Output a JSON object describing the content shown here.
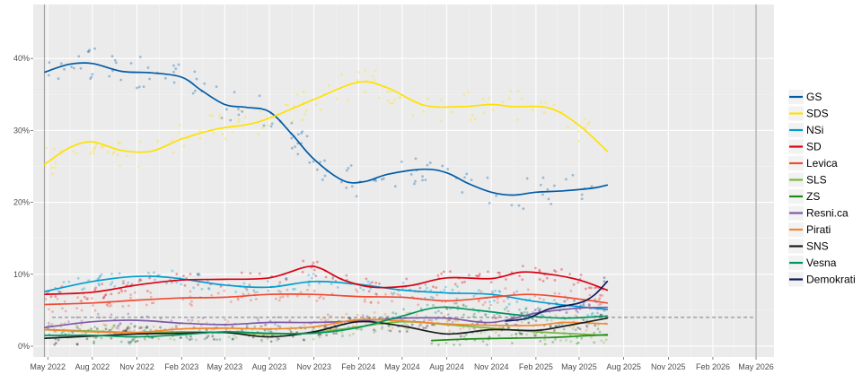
{
  "chart_data": {
    "type": "line",
    "title": "",
    "xlabel": "",
    "ylabel": "",
    "ylim": [
      -1.5,
      47.5
    ],
    "x_range": [
      "2022-04-01",
      "2026-06-07"
    ],
    "x_ticks": [
      {
        "date": "2022-05-01",
        "label": "May 2022"
      },
      {
        "date": "2022-08-01",
        "label": "Aug 2022"
      },
      {
        "date": "2022-11-01",
        "label": "Nov 2022"
      },
      {
        "date": "2023-02-01",
        "label": "Feb 2023"
      },
      {
        "date": "2023-05-01",
        "label": "May 2023"
      },
      {
        "date": "2023-08-01",
        "label": "Aug 2023"
      },
      {
        "date": "2023-11-01",
        "label": "Nov 2023"
      },
      {
        "date": "2024-02-01",
        "label": "Feb 2024"
      },
      {
        "date": "2024-05-01",
        "label": "May 2024"
      },
      {
        "date": "2024-08-01",
        "label": "Aug 2024"
      },
      {
        "date": "2024-11-01",
        "label": "Nov 2024"
      },
      {
        "date": "2025-02-01",
        "label": "Feb 2025"
      },
      {
        "date": "2025-05-01",
        "label": "May 2025"
      },
      {
        "date": "2025-08-01",
        "label": "Aug 2025"
      },
      {
        "date": "2025-11-01",
        "label": "Nov 2025"
      },
      {
        "date": "2026-02-01",
        "label": "Feb 2026"
      },
      {
        "date": "2026-05-01",
        "label": "May 2026"
      }
    ],
    "y_ticks": [
      {
        "value": 0,
        "label": "0%"
      },
      {
        "value": 10,
        "label": "10%"
      },
      {
        "value": 20,
        "label": "20%"
      },
      {
        "value": 30,
        "label": "30%"
      },
      {
        "value": 40,
        "label": "40%"
      }
    ],
    "threshold": 4,
    "reference_lines": [
      "2022-04-24",
      "2026-05-01"
    ],
    "grid": true,
    "legend_position": "right",
    "series": [
      {
        "name": "GS",
        "color": "#005ba6",
        "points": [
          [
            "2022-04-25",
            38.1
          ],
          [
            "2022-06-15",
            39.2
          ],
          [
            "2022-08-01",
            39.3
          ],
          [
            "2022-10-01",
            38.2
          ],
          [
            "2022-12-01",
            38.0
          ],
          [
            "2023-02-01",
            37.4
          ],
          [
            "2023-03-15",
            35.5
          ],
          [
            "2023-05-01",
            33.6
          ],
          [
            "2023-06-15",
            33.2
          ],
          [
            "2023-08-01",
            32.6
          ],
          [
            "2023-09-15",
            29.6
          ],
          [
            "2023-11-01",
            26.0
          ],
          [
            "2024-01-01",
            23.0
          ],
          [
            "2024-02-15",
            22.9
          ],
          [
            "2024-04-01",
            23.9
          ],
          [
            "2024-06-15",
            24.6
          ],
          [
            "2024-08-01",
            24.1
          ],
          [
            "2024-09-15",
            22.6
          ],
          [
            "2024-11-01",
            21.4
          ],
          [
            "2024-12-15",
            21.0
          ],
          [
            "2025-02-01",
            21.4
          ],
          [
            "2025-04-01",
            21.6
          ],
          [
            "2025-06-01",
            22.0
          ],
          [
            "2025-06-28",
            22.4
          ]
        ]
      },
      {
        "name": "SDS",
        "color": "#ffe100",
        "points": [
          [
            "2022-04-25",
            25.3
          ],
          [
            "2022-06-15",
            27.6
          ],
          [
            "2022-08-01",
            28.4
          ],
          [
            "2022-10-01",
            27.2
          ],
          [
            "2022-12-01",
            27.1
          ],
          [
            "2023-02-01",
            28.8
          ],
          [
            "2023-04-15",
            30.2
          ],
          [
            "2023-06-15",
            30.8
          ],
          [
            "2023-08-01",
            31.7
          ],
          [
            "2023-11-01",
            34.3
          ],
          [
            "2024-02-01",
            36.7
          ],
          [
            "2024-04-01",
            35.9
          ],
          [
            "2024-06-15",
            33.5
          ],
          [
            "2024-09-01",
            33.3
          ],
          [
            "2024-11-01",
            33.6
          ],
          [
            "2024-12-15",
            33.3
          ],
          [
            "2025-03-01",
            33.1
          ],
          [
            "2025-05-01",
            30.7
          ],
          [
            "2025-06-28",
            27.1
          ]
        ]
      },
      {
        "name": "NSi",
        "color": "#009ecf",
        "points": [
          [
            "2022-04-25",
            7.6
          ],
          [
            "2022-08-01",
            9.0
          ],
          [
            "2022-11-01",
            9.7
          ],
          [
            "2023-01-15",
            9.5
          ],
          [
            "2023-05-01",
            8.5
          ],
          [
            "2023-08-01",
            8.2
          ],
          [
            "2023-11-01",
            9.0
          ],
          [
            "2024-02-01",
            8.6
          ],
          [
            "2024-05-01",
            7.8
          ],
          [
            "2024-08-01",
            7.4
          ],
          [
            "2024-11-01",
            7.2
          ],
          [
            "2025-02-01",
            6.2
          ],
          [
            "2025-05-01",
            5.5
          ],
          [
            "2025-06-28",
            5.1
          ]
        ]
      },
      {
        "name": "SD",
        "color": "#d90012",
        "points": [
          [
            "2022-04-25",
            7.2
          ],
          [
            "2022-08-01",
            7.5
          ],
          [
            "2022-11-01",
            8.5
          ],
          [
            "2023-02-01",
            9.2
          ],
          [
            "2023-05-01",
            9.3
          ],
          [
            "2023-08-01",
            9.5
          ],
          [
            "2023-10-15",
            11.0
          ],
          [
            "2023-11-15",
            10.8
          ],
          [
            "2024-01-01",
            9.2
          ],
          [
            "2024-03-01",
            8.2
          ],
          [
            "2024-05-15",
            8.4
          ],
          [
            "2024-08-01",
            9.5
          ],
          [
            "2024-11-01",
            9.4
          ],
          [
            "2025-01-01",
            10.3
          ],
          [
            "2025-03-01",
            10.0
          ],
          [
            "2025-05-01",
            9.2
          ],
          [
            "2025-06-28",
            7.8
          ]
        ]
      },
      {
        "name": "Levica",
        "color": "#f04b34",
        "points": [
          [
            "2022-04-25",
            5.8
          ],
          [
            "2022-08-01",
            6.0
          ],
          [
            "2022-11-01",
            6.4
          ],
          [
            "2023-02-01",
            6.7
          ],
          [
            "2023-05-01",
            6.8
          ],
          [
            "2023-08-01",
            7.2
          ],
          [
            "2023-11-01",
            7.2
          ],
          [
            "2024-02-01",
            6.9
          ],
          [
            "2024-05-01",
            6.8
          ],
          [
            "2024-08-01",
            6.3
          ],
          [
            "2024-11-01",
            6.8
          ],
          [
            "2025-01-15",
            7.2
          ],
          [
            "2025-04-01",
            6.8
          ],
          [
            "2025-06-28",
            6.0
          ]
        ]
      },
      {
        "name": "SLS",
        "color": "#7ab541",
        "points": [
          [
            "2022-04-25",
            2.3
          ],
          [
            "2022-08-01",
            2.1
          ],
          [
            "2022-11-01",
            1.9
          ],
          [
            "2023-02-01",
            2.0
          ],
          [
            "2023-05-01",
            1.9
          ],
          [
            "2023-08-01",
            1.7
          ],
          [
            "2023-11-01",
            1.9
          ],
          [
            "2024-02-01",
            2.7
          ],
          [
            "2024-05-01",
            3.4
          ],
          [
            "2024-08-01",
            3.0
          ],
          [
            "2024-11-01",
            2.5
          ],
          [
            "2025-02-01",
            2.0
          ],
          [
            "2025-06-28",
            1.5
          ]
        ]
      },
      {
        "name": "ZS",
        "color": "#1e8c18",
        "points": [
          [
            "2024-07-01",
            0.8
          ],
          [
            "2024-09-15",
            1.0
          ],
          [
            "2024-12-01",
            1.1
          ],
          [
            "2025-03-01",
            1.2
          ],
          [
            "2025-05-01",
            1.4
          ],
          [
            "2025-06-28",
            1.6
          ]
        ]
      },
      {
        "name": "Resni.ca",
        "color": "#7d5aa8",
        "points": [
          [
            "2022-04-25",
            2.6
          ],
          [
            "2022-08-01",
            3.4
          ],
          [
            "2022-11-01",
            3.6
          ],
          [
            "2023-02-01",
            3.2
          ],
          [
            "2023-05-01",
            3.0
          ],
          [
            "2023-08-01",
            3.3
          ],
          [
            "2023-11-01",
            3.3
          ],
          [
            "2024-02-01",
            3.5
          ],
          [
            "2024-05-01",
            3.9
          ],
          [
            "2024-08-01",
            3.9
          ],
          [
            "2024-11-01",
            3.3
          ],
          [
            "2025-02-01",
            4.6
          ],
          [
            "2025-05-01",
            5.3
          ],
          [
            "2025-06-28",
            5.4
          ]
        ]
      },
      {
        "name": "Pirati",
        "color": "#f1882c",
        "points": [
          [
            "2022-04-25",
            2.3
          ],
          [
            "2022-08-01",
            2.0
          ],
          [
            "2022-11-01",
            1.9
          ],
          [
            "2023-02-01",
            2.4
          ],
          [
            "2023-05-01",
            2.5
          ],
          [
            "2023-08-01",
            2.4
          ],
          [
            "2023-11-01",
            2.7
          ],
          [
            "2024-02-01",
            3.7
          ],
          [
            "2024-05-01",
            3.5
          ],
          [
            "2024-08-01",
            3.1
          ],
          [
            "2024-11-01",
            2.9
          ],
          [
            "2025-02-01",
            2.9
          ],
          [
            "2025-04-01",
            3.3
          ],
          [
            "2025-06-28",
            3.1
          ]
        ]
      },
      {
        "name": "SNS",
        "color": "#1a1a1a",
        "points": [
          [
            "2022-04-25",
            1.1
          ],
          [
            "2022-08-01",
            1.4
          ],
          [
            "2022-11-01",
            1.7
          ],
          [
            "2023-02-01",
            1.8
          ],
          [
            "2023-05-01",
            1.9
          ],
          [
            "2023-08-01",
            1.3
          ],
          [
            "2023-11-01",
            2.0
          ],
          [
            "2024-02-01",
            3.4
          ],
          [
            "2024-05-01",
            2.8
          ],
          [
            "2024-08-01",
            1.7
          ],
          [
            "2024-11-01",
            2.3
          ],
          [
            "2025-02-01",
            2.2
          ],
          [
            "2025-04-01",
            2.8
          ],
          [
            "2025-06-28",
            3.9
          ]
        ]
      },
      {
        "name": "Vesna",
        "color": "#00965e",
        "points": [
          [
            "2022-04-25",
            1.5
          ],
          [
            "2022-08-01",
            1.5
          ],
          [
            "2022-11-01",
            1.3
          ],
          [
            "2023-02-01",
            1.6
          ],
          [
            "2023-05-01",
            2.0
          ],
          [
            "2023-08-01",
            1.8
          ],
          [
            "2023-11-01",
            1.8
          ],
          [
            "2024-02-01",
            2.6
          ],
          [
            "2024-05-01",
            4.2
          ],
          [
            "2024-07-15",
            5.4
          ],
          [
            "2024-10-01",
            5.0
          ],
          [
            "2025-01-01",
            4.3
          ],
          [
            "2025-04-01",
            3.9
          ],
          [
            "2025-06-28",
            4.2
          ]
        ]
      },
      {
        "name": "Demokrati",
        "color": "#0e1a5e",
        "points": [
          [
            "2024-12-01",
            3.5
          ],
          [
            "2025-01-15",
            3.9
          ],
          [
            "2025-03-01",
            5.2
          ],
          [
            "2025-05-01",
            6.0
          ],
          [
            "2025-06-01",
            7.1
          ],
          [
            "2025-06-28",
            9.0
          ]
        ]
      }
    ]
  }
}
